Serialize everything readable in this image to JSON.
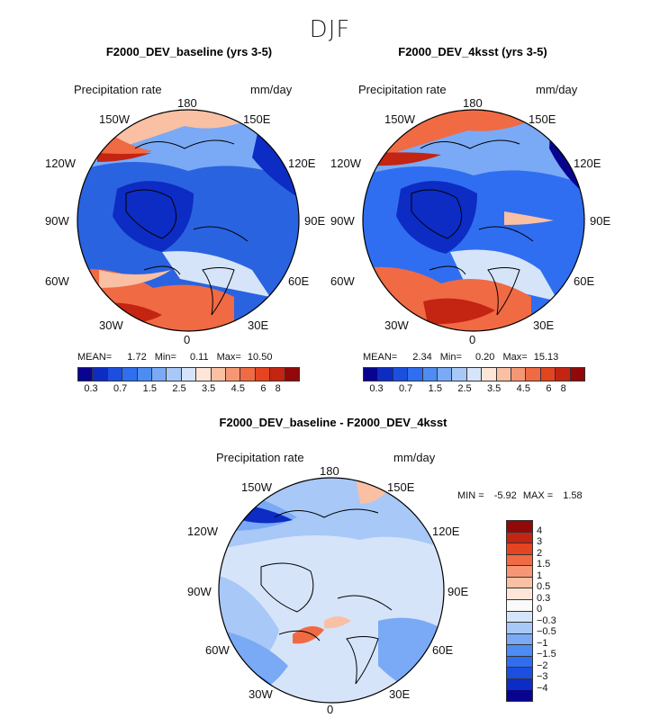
{
  "suptitle": "DJF",
  "field_label": "Precipitation rate",
  "units": "mm/day",
  "lon_labels": {
    "top": "180",
    "upper_left": "150W",
    "upper_right": "150E",
    "mid_left": "120W",
    "mid_right": "120E",
    "left": "90W",
    "right": "90E",
    "lower_left": "60W",
    "lower_right": "60E",
    "bottom_left": "30W",
    "bottom_right": "30E",
    "bottom": "0"
  },
  "panels": [
    {
      "title": "F2000_DEV_baseline (yrs 3-5)",
      "stats": {
        "mean_label": "MEAN=",
        "mean": "1.72",
        "min_label": "Min=",
        "min": "0.11",
        "max_label": "Max=",
        "max": "10.50"
      }
    },
    {
      "title": "F2000_DEV_4ksst (yrs 3-5)",
      "stats": {
        "mean_label": "MEAN=",
        "mean": "2.34",
        "min_label": "Min=",
        "min": "0.20",
        "max_label": "Max=",
        "max": "15.13"
      }
    },
    {
      "title": "F2000_DEV_baseline - F2000_DEV_4ksst",
      "stats": {
        "min_label": "MIN =",
        "min": "-5.92",
        "max_label": "MAX =",
        "max": "1.58"
      }
    }
  ],
  "colorbar_precip": {
    "colors": [
      "#08048f",
      "#0d2cc4",
      "#1c4fe0",
      "#2f6ef0",
      "#4d8cf2",
      "#7aaaf5",
      "#a8c8f7",
      "#d6e4fa",
      "#fde6d8",
      "#f9c0a4",
      "#f59774",
      "#f06a44",
      "#e44420",
      "#c42412",
      "#930808"
    ],
    "tick_labels": [
      "0.3",
      "0.7",
      "1.5",
      "2.5",
      "3.5",
      "4.5",
      "6",
      "8"
    ]
  },
  "colorbar_diff": {
    "colors": [
      "#930808",
      "#c42412",
      "#e44420",
      "#f06a44",
      "#f59774",
      "#f9c0a4",
      "#fde6d8",
      "#fafafa",
      "#d6e4fa",
      "#a8c8f7",
      "#7aaaf5",
      "#4d8cf2",
      "#2f6ef0",
      "#1c4fe0",
      "#0d2cc4",
      "#08048f"
    ],
    "tick_labels": [
      "4",
      "3",
      "2",
      "1.5",
      "1",
      "0.5",
      "0.3",
      "0",
      "−0.3",
      "−0.5",
      "−1",
      "−1.5",
      "−2",
      "−3",
      "−4"
    ]
  },
  "map_colors": {
    "baseline": {
      "base": "#2a63e0",
      "dark": "#0d2cc4",
      "darker": "#08048f",
      "light": "#7aaaf5",
      "pale": "#d6e4fa",
      "warm": "#f06a44",
      "hot": "#c42412",
      "peach": "#f9c0a4"
    },
    "warm": {
      "base": "#2f6ef0",
      "dark": "#0d2cc4",
      "darker": "#08048f",
      "light": "#7aaaf5",
      "pale": "#d6e4fa",
      "warm": "#f06a44",
      "hot": "#c42412",
      "peach": "#f9c0a4"
    },
    "diff": {
      "base": "#d6e4fa",
      "light": "#a8c8f7",
      "mid": "#7aaaf5",
      "dark": "#2f6ef0",
      "darker": "#0d2cc4",
      "peach": "#f9c0a4",
      "warm": "#f06a44"
    }
  }
}
